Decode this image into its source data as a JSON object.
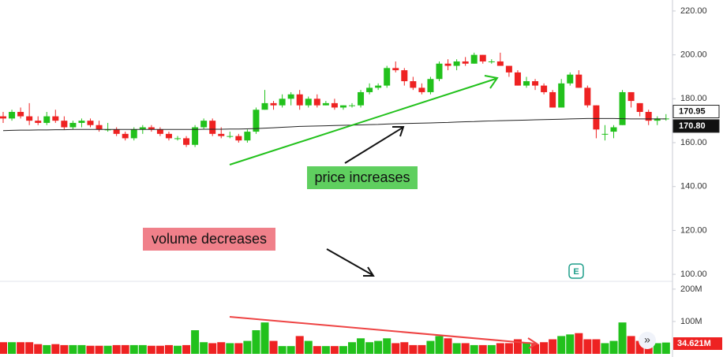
{
  "chart_data": {
    "type": "candlestick",
    "open": [
      172,
      171,
      174,
      172,
      170,
      169,
      172,
      170,
      167,
      169,
      170,
      168,
      166,
      166,
      164,
      162,
      166,
      167,
      166,
      164,
      162,
      162,
      159,
      167,
      170,
      164,
      163,
      163,
      161,
      165,
      175,
      178,
      177,
      180,
      182,
      177,
      180,
      177,
      178,
      176,
      177,
      177,
      183,
      185,
      186,
      194,
      193,
      188,
      185,
      183,
      189,
      196,
      195,
      197,
      196,
      200,
      197,
      197,
      195,
      192,
      186,
      188,
      186,
      183,
      176,
      187,
      191,
      185,
      177,
      164,
      165,
      168,
      183,
      178,
      174,
      170,
      171
    ],
    "high": [
      174,
      175,
      176,
      178,
      172,
      174,
      175,
      172,
      170,
      171,
      171,
      170,
      169,
      167,
      165,
      167,
      168,
      168,
      167,
      165,
      163,
      163,
      168,
      171,
      171,
      167,
      165,
      164,
      166,
      176,
      184,
      179,
      182,
      183,
      184,
      181,
      182,
      179,
      180,
      177,
      178,
      184,
      187,
      187,
      195,
      197,
      194,
      190,
      187,
      190,
      197,
      198,
      198,
      199,
      201,
      200,
      198,
      201,
      195,
      193,
      190,
      189,
      187,
      184,
      189,
      192,
      193,
      186,
      177,
      168,
      168,
      184,
      183,
      178,
      175,
      172,
      173
    ],
    "low": [
      169,
      170,
      171,
      168,
      168,
      168,
      169,
      166,
      166,
      167,
      167,
      165,
      165,
      163,
      161,
      161,
      164,
      165,
      163,
      161,
      161,
      158,
      158,
      166,
      163,
      162,
      162,
      160,
      160,
      164,
      175,
      175,
      176,
      177,
      175,
      176,
      176,
      177,
      175,
      175,
      176,
      176,
      182,
      184,
      185,
      192,
      186,
      184,
      182,
      182,
      188,
      193,
      193,
      195,
      196,
      196,
      196,
      195,
      190,
      186,
      185,
      184,
      182,
      176,
      176,
      186,
      185,
      176,
      162,
      161,
      162,
      168,
      176,
      172,
      168,
      168,
      170
    ],
    "close": [
      171,
      174,
      172,
      170,
      169,
      172,
      170,
      167,
      169,
      170,
      168,
      166,
      166,
      164,
      162,
      166,
      167,
      166,
      164,
      162,
      162,
      159,
      167,
      170,
      164,
      163,
      163,
      161,
      165,
      175,
      178,
      177,
      180,
      182,
      177,
      180,
      177,
      178,
      176,
      177,
      177,
      183,
      185,
      186,
      194,
      193,
      188,
      185,
      183,
      189,
      196,
      195,
      197,
      196,
      200,
      197,
      197,
      195,
      192,
      186,
      188,
      186,
      183,
      176,
      187,
      191,
      185,
      177,
      166,
      164,
      167,
      183,
      179,
      174,
      170,
      171,
      171
    ],
    "volume": [
      36,
      36,
      36,
      36,
      30,
      27,
      30,
      27,
      27,
      27,
      25,
      25,
      25,
      27,
      27,
      27,
      27,
      25,
      25,
      27,
      25,
      27,
      73,
      36,
      33,
      36,
      33,
      33,
      40,
      73,
      97,
      40,
      24,
      24,
      55,
      40,
      24,
      24,
      24,
      24,
      36,
      48,
      36,
      40,
      48,
      33,
      36,
      27,
      27,
      40,
      55,
      48,
      33,
      33,
      27,
      27,
      27,
      33,
      33,
      45,
      36,
      30,
      36,
      45,
      55,
      60,
      64,
      45,
      45,
      33,
      40,
      97,
      55,
      40,
      33,
      33,
      35
    ],
    "ma": [
      165.5,
      165.6,
      165.7,
      165.7,
      165.8,
      165.8,
      165.9,
      165.9,
      166,
      166,
      166,
      166,
      166,
      166,
      166,
      166,
      166,
      166,
      166,
      166,
      166,
      166,
      166,
      166.1,
      166.1,
      166.1,
      166.2,
      166.2,
      166.3,
      166.4,
      166.6,
      166.8,
      167,
      167.2,
      167.4,
      167.5,
      167.6,
      167.7,
      167.8,
      167.9,
      168,
      168.1,
      168.2,
      168.3,
      168.5,
      168.6,
      168.7,
      168.8,
      168.9,
      169,
      169.1,
      169.2,
      169.4,
      169.5,
      169.6,
      169.8,
      169.9,
      170,
      170.1,
      170.2,
      170.3,
      170.4,
      170.5,
      170.6,
      170.7,
      170.8,
      170.9,
      171,
      171,
      171,
      171,
      170.9,
      170.8,
      170.8,
      170.8,
      170.8,
      170.8
    ],
    "up_color": "#22c11c",
    "down_color": "#ee2222",
    "ma_color": "#222222",
    "ylim": [
      96.8,
      225
    ],
    "yticks": [
      {
        "value": 100,
        "label": "100.00"
      },
      {
        "value": 120,
        "label": "120.00"
      },
      {
        "value": 140,
        "label": "140.00"
      },
      {
        "value": 160,
        "label": "160.00"
      },
      {
        "value": 180,
        "label": "180.00"
      },
      {
        "value": 200,
        "label": "200.00"
      },
      {
        "value": 220,
        "label": "220.00"
      }
    ],
    "y2lim": [
      0,
      224
    ],
    "y2ticks": [
      {
        "value": 100,
        "label": "100M"
      },
      {
        "value": 200,
        "label": "200M"
      }
    ],
    "price_labels": [
      {
        "value": 170.95,
        "label": "170.95"
      },
      {
        "value": 170.8,
        "label": "170.80"
      }
    ],
    "volume_label": {
      "value": 34.621,
      "label": "34.621M"
    },
    "annotations": [
      "price increases",
      "volume decreases"
    ],
    "event_marker": "E"
  }
}
